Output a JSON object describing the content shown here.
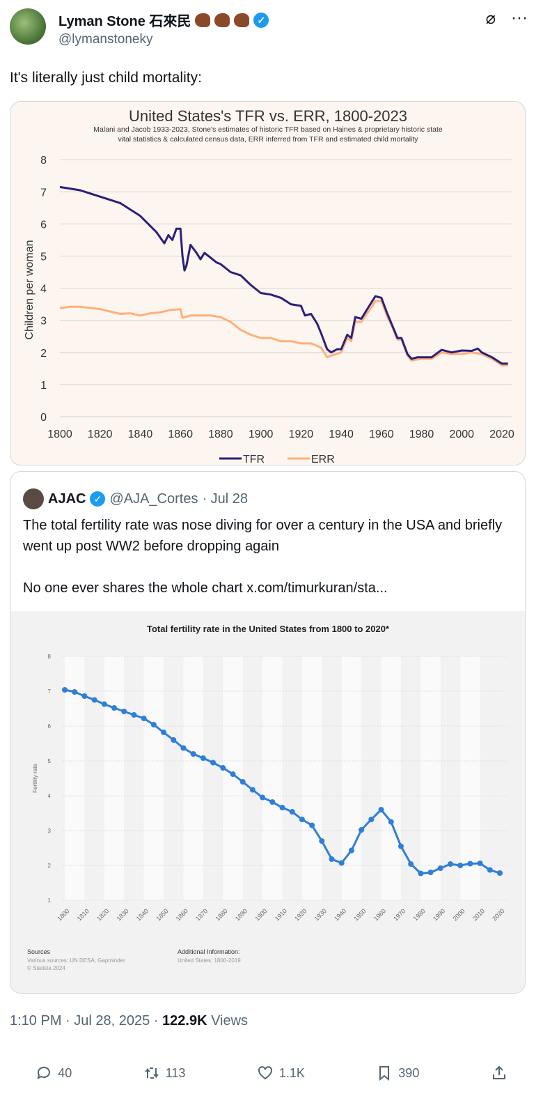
{
  "author": {
    "name": "Lyman Stone 石來民",
    "handle": "@lymanstoneky"
  },
  "tweet_text": "It's literally just child mortality:",
  "chart_data": [
    {
      "type": "line",
      "title": "United States's TFR vs. ERR, 1800-2023",
      "subtitle": "Malani and Jacob 1933-2023, Stone's estimates of historic TFR based on Haines & proprietary historic state vital statistics & calculated census data, ERR inferred from TFR and estimated child mortality",
      "ylabel": "Children per woman",
      "xlabel": "",
      "xlim": [
        1800,
        2023
      ],
      "ylim": [
        0,
        8
      ],
      "xticks": [
        "1800",
        "1820",
        "1840",
        "1860",
        "1880",
        "1900",
        "1920",
        "1940",
        "1960",
        "1980",
        "2000",
        "2020"
      ],
      "yticks": [
        "0",
        "1",
        "2",
        "3",
        "4",
        "5",
        "6",
        "7",
        "8"
      ],
      "legend": "bottom",
      "series": [
        {
          "name": "TFR",
          "color": "#2b1f7a",
          "x": [
            1800,
            1810,
            1820,
            1830,
            1840,
            1848,
            1852,
            1854,
            1856,
            1858,
            1860,
            1861,
            1862,
            1863,
            1865,
            1868,
            1870,
            1872,
            1875,
            1878,
            1880,
            1885,
            1890,
            1895,
            1900,
            1905,
            1910,
            1915,
            1920,
            1922,
            1925,
            1928,
            1930,
            1933,
            1935,
            1938,
            1940,
            1943,
            1945,
            1947,
            1950,
            1955,
            1957,
            1960,
            1963,
            1965,
            1968,
            1970,
            1973,
            1975,
            1978,
            1980,
            1985,
            1990,
            1995,
            2000,
            2005,
            2008,
            2010,
            2015,
            2020,
            2023
          ],
          "y": [
            7.15,
            7.05,
            6.85,
            6.65,
            6.25,
            5.75,
            5.4,
            5.65,
            5.5,
            5.85,
            5.85,
            5.0,
            4.55,
            4.7,
            5.35,
            5.1,
            4.9,
            5.1,
            4.95,
            4.8,
            4.75,
            4.5,
            4.4,
            4.1,
            3.85,
            3.8,
            3.7,
            3.5,
            3.45,
            3.15,
            3.2,
            2.9,
            2.6,
            2.1,
            2.0,
            2.1,
            2.1,
            2.55,
            2.45,
            3.1,
            3.05,
            3.55,
            3.75,
            3.7,
            3.2,
            2.9,
            2.45,
            2.45,
            1.95,
            1.8,
            1.85,
            1.85,
            1.85,
            2.08,
            2.0,
            2.06,
            2.05,
            2.12,
            2.0,
            1.85,
            1.65,
            1.65
          ]
        },
        {
          "name": "ERR",
          "color": "#ffb07a",
          "x": [
            1800,
            1805,
            1810,
            1820,
            1830,
            1835,
            1840,
            1845,
            1850,
            1855,
            1860,
            1861,
            1865,
            1870,
            1875,
            1880,
            1885,
            1890,
            1895,
            1900,
            1905,
            1910,
            1915,
            1920,
            1925,
            1930,
            1933,
            1935,
            1940,
            1943,
            1945,
            1947,
            1950,
            1955,
            1957,
            1960,
            1963,
            1965,
            1968,
            1970,
            1973,
            1975,
            1980,
            1985,
            1990,
            1995,
            2000,
            2005,
            2010,
            2015,
            2020,
            2023
          ],
          "y": [
            3.38,
            3.42,
            3.42,
            3.35,
            3.2,
            3.22,
            3.15,
            3.22,
            3.25,
            3.32,
            3.35,
            3.08,
            3.15,
            3.15,
            3.15,
            3.1,
            2.95,
            2.7,
            2.55,
            2.45,
            2.45,
            2.35,
            2.35,
            2.28,
            2.28,
            2.15,
            1.85,
            1.9,
            2.0,
            2.45,
            2.35,
            2.95,
            2.95,
            3.4,
            3.6,
            3.6,
            3.1,
            2.85,
            2.4,
            2.4,
            1.9,
            1.75,
            1.8,
            1.8,
            2.0,
            1.95,
            1.95,
            2.0,
            1.95,
            1.8,
            1.6,
            1.6
          ]
        }
      ]
    },
    {
      "type": "line",
      "title": "Total fertility rate in the United States from 1800 to 2020*",
      "ylabel": "Fertility rate",
      "xlim": [
        1800,
        2020
      ],
      "ylim": [
        1,
        8
      ],
      "xticks": [
        "1800",
        "1810",
        "1820",
        "1830",
        "1840",
        "1850",
        "1860",
        "1870",
        "1880",
        "1890",
        "1900",
        "1910",
        "1920",
        "1930",
        "1940",
        "1950",
        "1960",
        "1970",
        "1980",
        "1990",
        "2000",
        "2010",
        "2020"
      ],
      "yticks": [
        "1",
        "2",
        "3",
        "4",
        "5",
        "6",
        "7",
        "8"
      ],
      "series": [
        {
          "name": "Fertility rate",
          "color": "#2f7ed8",
          "x": [
            1800,
            1805,
            1810,
            1815,
            1820,
            1825,
            1830,
            1835,
            1840,
            1845,
            1850,
            1855,
            1860,
            1865,
            1870,
            1875,
            1880,
            1885,
            1890,
            1895,
            1900,
            1905,
            1910,
            1915,
            1920,
            1925,
            1930,
            1935,
            1940,
            1945,
            1950,
            1955,
            1960,
            1965,
            1970,
            1975,
            1980,
            1985,
            1990,
            1995,
            2000,
            2005,
            2010,
            2015,
            2020
          ],
          "y": [
            7.04,
            6.98,
            6.86,
            6.75,
            6.63,
            6.52,
            6.42,
            6.32,
            6.22,
            6.04,
            5.82,
            5.6,
            5.37,
            5.2,
            5.08,
            4.95,
            4.8,
            4.62,
            4.4,
            4.17,
            3.95,
            3.82,
            3.66,
            3.54,
            3.32,
            3.15,
            2.7,
            2.18,
            2.07,
            2.43,
            3.02,
            3.32,
            3.6,
            3.25,
            2.55,
            2.04,
            1.77,
            1.8,
            1.92,
            2.04,
            2.0,
            2.05,
            2.06,
            1.87,
            1.78
          ]
        }
      ],
      "sources_label": "Sources",
      "sources": "Various sources; UN DESA; Gapminder",
      "copyright": "© Statista 2024",
      "additional_label": "Additional Information:",
      "additional": "United States; 1800-2019"
    }
  ],
  "quote": {
    "name": "AJAC",
    "handle": "@AJA_Cortes",
    "date": "· Jul 28",
    "text": "The total fertility rate was nose diving for over a century in the USA and briefly went up post WW2 before dropping again\n\nNo one ever shares the whole chart  x.com/timurkuran/sta..."
  },
  "meta": {
    "time": "1:10 PM · Jul 28, 2025 · ",
    "views": "122.9K",
    "views_label": " Views"
  },
  "actions": {
    "replies": "40",
    "reposts": "113",
    "likes": "1.1K",
    "bookmarks": "390"
  }
}
